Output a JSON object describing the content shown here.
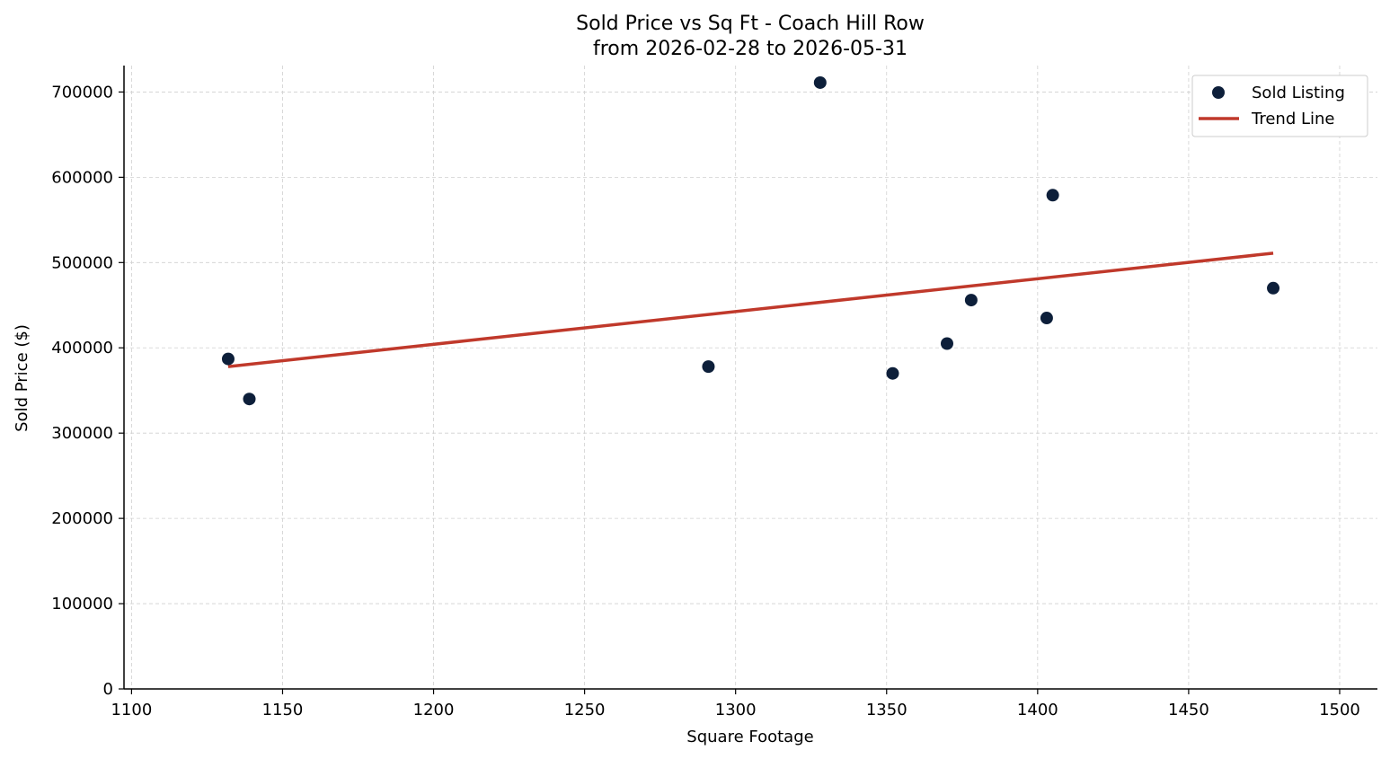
{
  "chart_data": {
    "type": "scatter",
    "title": "Sold Price vs Sq Ft - Coach Hill Row",
    "subtitle": "from 2026-02-28 to 2026-05-31",
    "xlabel": "Square Footage",
    "ylabel": "Sold Price ($)",
    "xlim": [
      1097.5,
      1512.5
    ],
    "ylim": [
      0,
      731000
    ],
    "xticks": [
      1100,
      1150,
      1200,
      1250,
      1300,
      1350,
      1400,
      1450,
      1500
    ],
    "yticks": [
      0,
      100000,
      200000,
      300000,
      400000,
      500000,
      600000,
      700000
    ],
    "grid": true,
    "legend_position": "top-right",
    "colors": {
      "points": "#0d1f3a",
      "trend": "#c0392b",
      "grid": "#d0d0d0"
    },
    "series": [
      {
        "name": "Sold Listing",
        "kind": "scatter",
        "points": [
          {
            "x": 1132,
            "y": 387000
          },
          {
            "x": 1139,
            "y": 340000
          },
          {
            "x": 1291,
            "y": 378000
          },
          {
            "x": 1328,
            "y": 711000
          },
          {
            "x": 1352,
            "y": 370000
          },
          {
            "x": 1370,
            "y": 405000
          },
          {
            "x": 1378,
            "y": 456000
          },
          {
            "x": 1403,
            "y": 435000
          },
          {
            "x": 1405,
            "y": 579000
          },
          {
            "x": 1478,
            "y": 470000
          }
        ]
      },
      {
        "name": "Trend Line",
        "kind": "line",
        "points": [
          {
            "x": 1132,
            "y": 378000
          },
          {
            "x": 1478,
            "y": 511000
          }
        ]
      }
    ]
  }
}
